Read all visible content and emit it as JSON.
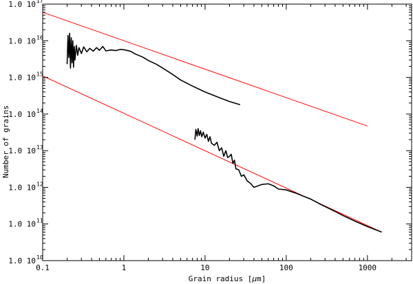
{
  "chart_data": {
    "type": "line",
    "xscale": "log",
    "yscale": "log",
    "xlim": [
      0.1,
      3500
    ],
    "ylim": [
      10000000000.0,
      1e+17
    ],
    "xlabel_prefix": "Grain radius [",
    "xlabel_mu": "μ",
    "xlabel_unit": "m]",
    "ylabel": "Number of grains",
    "grid": false,
    "legend": "none",
    "x_ticks": [
      {
        "value": 0.1,
        "label": "0.1"
      },
      {
        "value": 1,
        "label": "1"
      },
      {
        "value": 10,
        "label": "10"
      },
      {
        "value": 100,
        "label": "100"
      },
      {
        "value": 1000,
        "label": "1000"
      }
    ],
    "y_ticks": [
      {
        "value": 10000000000.0,
        "mantissa": "1.0 10",
        "exp": "10"
      },
      {
        "value": 100000000000.0,
        "mantissa": "1.0 10",
        "exp": "11"
      },
      {
        "value": 1000000000000.0,
        "mantissa": "1.0 10",
        "exp": "12"
      },
      {
        "value": 10000000000000.0,
        "mantissa": "1.0 10",
        "exp": "13"
      },
      {
        "value": 100000000000000.0,
        "mantissa": "1.0 10",
        "exp": "14"
      },
      {
        "value": 1000000000000000.0,
        "mantissa": "1.0 10",
        "exp": "15"
      },
      {
        "value": 1e+16,
        "mantissa": "1.0 10",
        "exp": "16"
      },
      {
        "value": 1e+17,
        "mantissa": "1.0 10",
        "exp": "17"
      }
    ],
    "series": [
      {
        "color": "#000000",
        "x": [
          0.2,
          0.205,
          0.21,
          0.215,
          0.22,
          0.225,
          0.23,
          0.235,
          0.24,
          0.245,
          0.25,
          0.26,
          0.27,
          0.28,
          0.3,
          0.32,
          0.35,
          0.38,
          0.42,
          0.46,
          0.5,
          0.55,
          0.6,
          0.7,
          0.8,
          0.9,
          1.0,
          1.2,
          1.4,
          1.7,
          2.0,
          2.5,
          3.0,
          4.0,
          5.0,
          7.0,
          10,
          15,
          20,
          27
        ],
        "y": [
          2300000000000000.0,
          1.4e+16,
          3500000000000000.0,
          1.6e+16,
          1800000000000000.0,
          1.2e+16,
          2500000000000000.0,
          1e+16,
          1900000000000000.0,
          7000000000000000.0,
          3000000000000000.0,
          7500000000000000.0,
          4000000000000000.0,
          6500000000000000.0,
          4500000000000000.0,
          6800000000000000.0,
          5000000000000000.0,
          6200000000000000.0,
          5200000000000000.0,
          6500000000000000.0,
          5500000000000000.0,
          7000000000000000.0,
          5300000000000000.0,
          5600000000000000.0,
          5400000000000000.0,
          5800000000000000.0,
          5700000000000000.0,
          5200000000000000.0,
          4300000000000000.0,
          3600000000000000.0,
          2900000000000000.0,
          2300000000000000.0,
          1800000000000000.0,
          1200000000000000.0,
          850000000000000.0,
          580000000000000.0,
          400000000000000.0,
          280000000000000.0,
          220000000000000.0,
          180000000000000.0
        ]
      },
      {
        "color": "#000000",
        "x": [
          7.5,
          7.7,
          8.0,
          8.2,
          8.5,
          8.8,
          9.1,
          9.5,
          10,
          10.5,
          11,
          11.5,
          12,
          13,
          14,
          15,
          16,
          17,
          18,
          19,
          20,
          21,
          22,
          23,
          24,
          26,
          28,
          30,
          33,
          36,
          40,
          50,
          60,
          70,
          80,
          100,
          130,
          170,
          200,
          260,
          300,
          400,
          500,
          700,
          1000,
          1500
        ],
        "y": [
          20000000000000.0,
          38000000000000.0,
          25000000000000.0,
          40000000000000.0,
          26000000000000.0,
          35000000000000.0,
          24000000000000.0,
          32000000000000.0,
          22000000000000.0,
          28000000000000.0,
          18000000000000.0,
          24000000000000.0,
          16000000000000.0,
          14000000000000.0,
          17000000000000.0,
          10000000000000.0,
          12000000000000.0,
          7000000000000.0,
          10000000000000.0,
          6500000000000.0,
          7000000000000.0,
          8000000000000.0,
          4500000000000.0,
          5500000000000.0,
          3200000000000.0,
          3000000000000.0,
          2000000000000.0,
          2200000000000.0,
          1500000000000.0,
          1300000000000.0,
          1000000000000.0,
          1200000000000.0,
          1250000000000.0,
          1100000000000.0,
          900000000000.0,
          850000000000.0,
          700000000000.0,
          550000000000.0,
          480000000000.0,
          350000000000.0,
          300000000000.0,
          220000000000.0,
          170000000000.0,
          120000000000.0,
          85000000000.0,
          60000000000.0
        ]
      },
      {
        "color": "#ff0000",
        "x": [
          0.1,
          1000
        ],
        "y": [
          6e+16,
          47000000000000.0
        ]
      },
      {
        "color": "#ff0000",
        "x": [
          0.1,
          1500
        ],
        "y": [
          1100000000000000.0,
          60000000000.0
        ]
      }
    ]
  }
}
